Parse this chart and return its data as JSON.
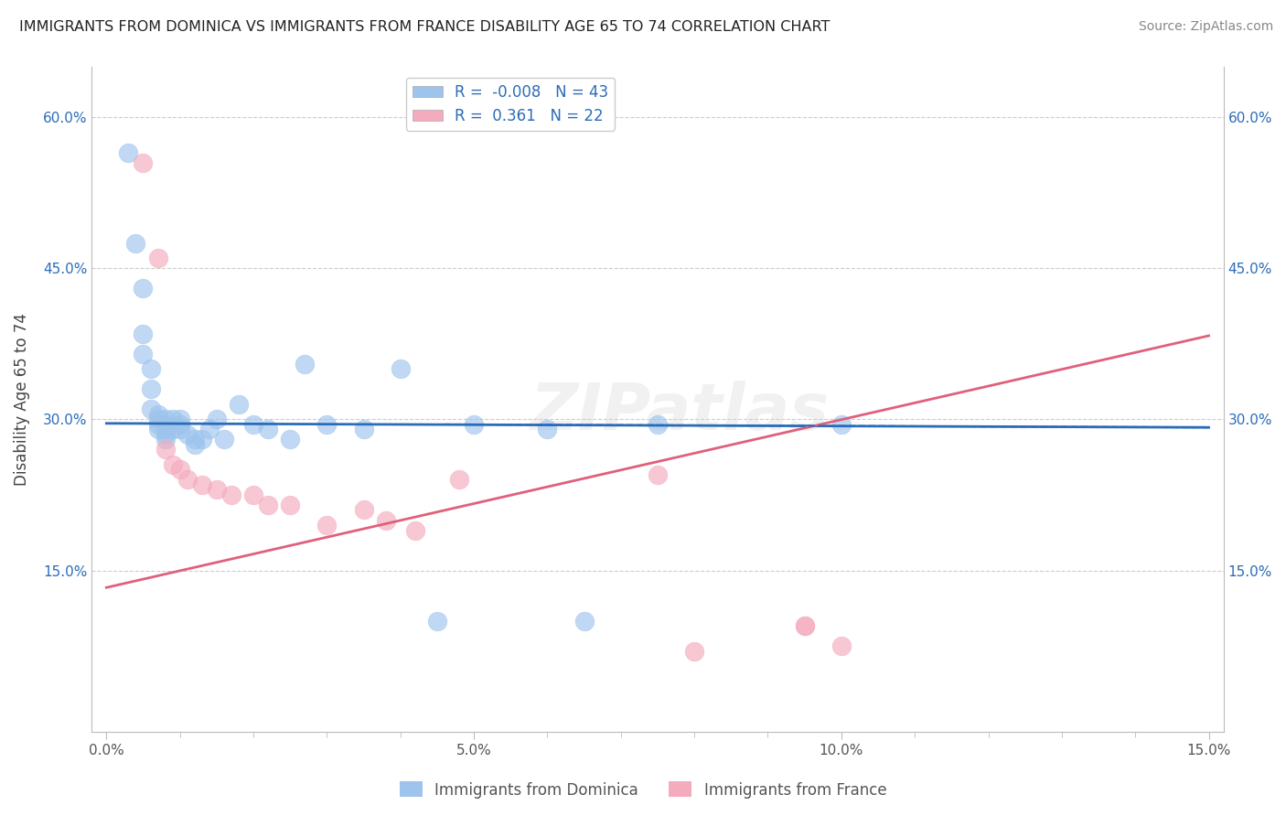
{
  "title": "IMMIGRANTS FROM DOMINICA VS IMMIGRANTS FROM FRANCE DISABILITY AGE 65 TO 74 CORRELATION CHART",
  "source": "Source: ZipAtlas.com",
  "ylabel": "Disability Age 65 to 74",
  "xlabel": "",
  "xlim": [
    -0.002,
    0.152
  ],
  "ylim": [
    -0.01,
    0.65
  ],
  "xticks": [
    0.0,
    0.05,
    0.1,
    0.15
  ],
  "xticklabels": [
    "0.0%",
    "5.0%",
    "10.0%",
    "15.0%"
  ],
  "yticks": [
    0.15,
    0.3,
    0.45,
    0.6
  ],
  "yticklabels": [
    "15.0%",
    "30.0%",
    "45.0%",
    "60.0%"
  ],
  "right_yticks": [
    0.15,
    0.3,
    0.45,
    0.6
  ],
  "right_yticklabels": [
    "15.0%",
    "30.0%",
    "45.0%",
    "60.0%"
  ],
  "R_dominica": -0.008,
  "N_dominica": 43,
  "R_france": 0.361,
  "N_france": 22,
  "blue_color": "#9EC4ED",
  "pink_color": "#F4ABBE",
  "blue_line_color": "#2B6CB8",
  "pink_line_color": "#E0607A",
  "title_color": "#222222",
  "source_color": "#888888",
  "axis_color": "#bbbbbb",
  "grid_color": "#cccccc",
  "background_color": "#ffffff",
  "watermark": "ZIPatlas",
  "blue_trend_x0": 0.0,
  "blue_trend_y0": 0.296,
  "blue_trend_x1": 0.15,
  "blue_trend_y1": 0.292,
  "pink_trend_x0": 0.0,
  "pink_trend_y0": 0.133,
  "pink_trend_x1": 0.15,
  "pink_trend_y1": 0.383,
  "scatter_dominica_x": [
    0.003,
    0.004,
    0.005,
    0.005,
    0.005,
    0.006,
    0.006,
    0.006,
    0.007,
    0.007,
    0.007,
    0.007,
    0.008,
    0.008,
    0.008,
    0.008,
    0.008,
    0.009,
    0.009,
    0.01,
    0.01,
    0.01,
    0.011,
    0.012,
    0.012,
    0.013,
    0.014,
    0.015,
    0.016,
    0.018,
    0.02,
    0.022,
    0.025,
    0.027,
    0.03,
    0.035,
    0.04,
    0.045,
    0.05,
    0.06,
    0.065,
    0.075,
    0.1
  ],
  "scatter_dominica_y": [
    0.565,
    0.475,
    0.43,
    0.385,
    0.365,
    0.35,
    0.33,
    0.31,
    0.305,
    0.3,
    0.295,
    0.29,
    0.3,
    0.295,
    0.29,
    0.285,
    0.28,
    0.3,
    0.29,
    0.3,
    0.295,
    0.29,
    0.285,
    0.28,
    0.275,
    0.28,
    0.29,
    0.3,
    0.28,
    0.315,
    0.295,
    0.29,
    0.28,
    0.355,
    0.295,
    0.29,
    0.35,
    0.1,
    0.295,
    0.29,
    0.1,
    0.295,
    0.295
  ],
  "scatter_france_x": [
    0.005,
    0.007,
    0.008,
    0.009,
    0.01,
    0.011,
    0.013,
    0.015,
    0.017,
    0.02,
    0.022,
    0.025,
    0.03,
    0.035,
    0.038,
    0.042,
    0.048,
    0.075,
    0.08,
    0.095,
    0.095,
    0.1
  ],
  "scatter_france_y": [
    0.555,
    0.46,
    0.27,
    0.255,
    0.25,
    0.24,
    0.235,
    0.23,
    0.225,
    0.225,
    0.215,
    0.215,
    0.195,
    0.21,
    0.2,
    0.19,
    0.24,
    0.245,
    0.07,
    0.095,
    0.095,
    0.075
  ]
}
